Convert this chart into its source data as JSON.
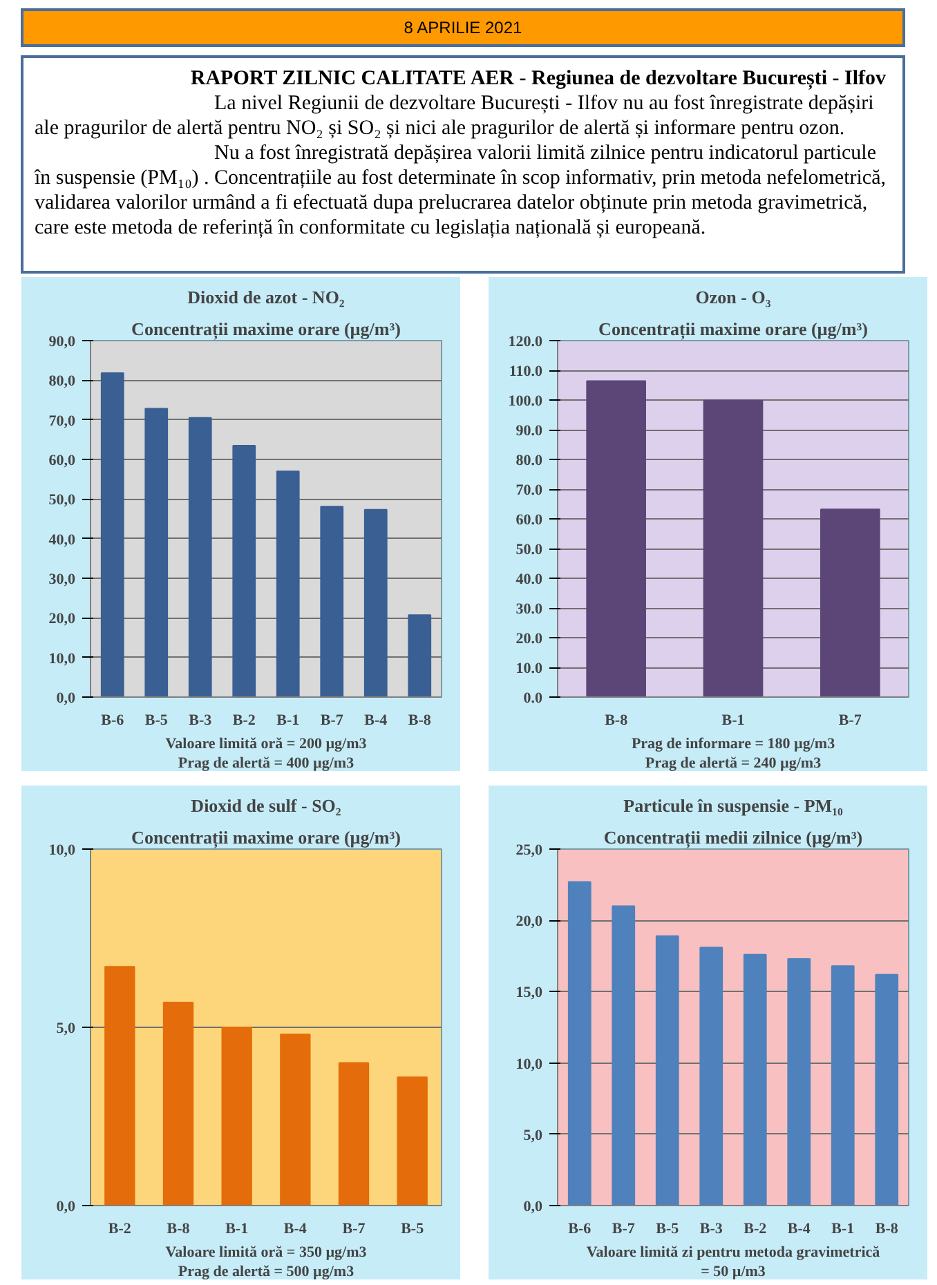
{
  "chart_data": [
    {
      "type": "other",
      "title": "8  APRILIE  2021",
      "subtitle": "RAPORT ZILNIC CALITATE AER - Regiunea de dezvoltare București - Ilfov",
      "annotations": [
        "La nivel Regiunii de dezvoltare București - Ilfov nu au fost înregistrate depășiri ale pragurilor de alertă pentru NO₂ și SO₂ și nici ale pragurilor de alertă și informare pentru ozon.",
        "Nu  a  fost înregistrată depășirea valorii limită zilnice pentru indicatorul particule în suspensie (PM₁₀) . Concentrațiile au fost determinate în scop informativ, prin metoda nefelometrică, validarea valorilor urmând a fi efectuată dupa prelucrarea datelor obținute prin metoda gravimetrică, care este metoda de referință  în conformitate cu legislația națională și europeană."
      ]
    },
    {
      "type": "bar",
      "title": "Dioxid de azot - NO₂",
      "subtitle": "Concentrații maxime orare (µg/m³)",
      "categories": [
        "B-6",
        "B-5",
        "B-3",
        "B-2",
        "B-1",
        "B-7",
        "B-4",
        "B-8"
      ],
      "values": [
        81.8,
        72.8,
        70.5,
        63.5,
        57.0,
        48.1,
        47.3,
        20.7
      ],
      "color": "#3a5f93",
      "ylim": [
        0,
        90
      ],
      "yticks": [
        {
          "value": 0,
          "label": "0,0"
        },
        {
          "value": 10,
          "label": "10,0"
        },
        {
          "value": 20,
          "label": "20,0"
        },
        {
          "value": 30,
          "label": "30,0"
        },
        {
          "value": 40,
          "label": "40,0"
        },
        {
          "value": 50,
          "label": "50,0"
        },
        {
          "value": 60,
          "label": "60,0"
        },
        {
          "value": 70,
          "label": "70,0"
        },
        {
          "value": 80,
          "label": "80,0"
        },
        {
          "value": 90,
          "label": "90,0"
        }
      ],
      "grid": "y",
      "annotations": [
        "Valoare limită oră = 200 µg/m3",
        "Prag de alertă = 400 µg/m3"
      ]
    },
    {
      "type": "bar",
      "title": "Ozon - O₃",
      "subtitle": "Concentrații maxime orare (µg/m³)",
      "categories": [
        "B-8",
        "B-1",
        "B-7"
      ],
      "values": [
        106.4,
        99.8,
        63.2
      ],
      "color": "#5c4677",
      "ylim": [
        0,
        120
      ],
      "yticks": [
        {
          "value": 0,
          "label": "0.0"
        },
        {
          "value": 10,
          "label": "10.0"
        },
        {
          "value": 20,
          "label": "20.0"
        },
        {
          "value": 30,
          "label": "30.0"
        },
        {
          "value": 40,
          "label": "40.0"
        },
        {
          "value": 50,
          "label": "50.0"
        },
        {
          "value": 60,
          "label": "60.0"
        },
        {
          "value": 70,
          "label": "70.0"
        },
        {
          "value": 80,
          "label": "80.0"
        },
        {
          "value": 90,
          "label": "90.0"
        },
        {
          "value": 100,
          "label": "100.0"
        },
        {
          "value": 110,
          "label": "110.0"
        },
        {
          "value": 120,
          "label": "120.0"
        }
      ],
      "grid": "y",
      "annotations": [
        "Prag de informare = 180 µg/m3",
        "Prag de alertă = 240 µg/m3"
      ]
    },
    {
      "type": "bar",
      "title": "Dioxid de sulf - SO₂",
      "subtitle": "Concentrații maxime orare (µg/m³)",
      "categories": [
        "B-2",
        "B-8",
        "B-1",
        "B-4",
        "B-7",
        "B-5"
      ],
      "values": [
        6.7,
        5.7,
        5.0,
        4.8,
        4.0,
        3.6
      ],
      "color": "#e46c0a",
      "ylim": [
        0,
        10
      ],
      "yticks": [
        {
          "value": 0,
          "label": "0,0"
        },
        {
          "value": 5,
          "label": "5,0"
        },
        {
          "value": 10,
          "label": "10,0"
        }
      ],
      "grid": "y",
      "annotations": [
        "Valoare limită oră = 350 µg/m3",
        "Prag de alertă = 500 µg/m3"
      ]
    },
    {
      "type": "bar",
      "title": "Particule în suspensie - PM₁₀",
      "subtitle": "Concentrații medii zilnice (µg/m³)",
      "categories": [
        "B-6",
        "B-7",
        "B-5",
        "B-3",
        "B-2",
        "B-4",
        "B-1",
        "B-8"
      ],
      "values": [
        22.7,
        21.0,
        18.9,
        18.1,
        17.6,
        17.3,
        16.8,
        16.2
      ],
      "color": "#4f81bd",
      "ylim": [
        0,
        25
      ],
      "yticks": [
        {
          "value": 0,
          "label": "0,0"
        },
        {
          "value": 5,
          "label": "5,0"
        },
        {
          "value": 10,
          "label": "10,0"
        },
        {
          "value": 15,
          "label": "15,0"
        },
        {
          "value": 20,
          "label": "20,0"
        },
        {
          "value": 25,
          "label": "25,0"
        }
      ],
      "grid": "y",
      "annotations": [
        "Valoare limită zi pentru metoda gravimetrică",
        "= 50 µ/m3"
      ]
    }
  ]
}
